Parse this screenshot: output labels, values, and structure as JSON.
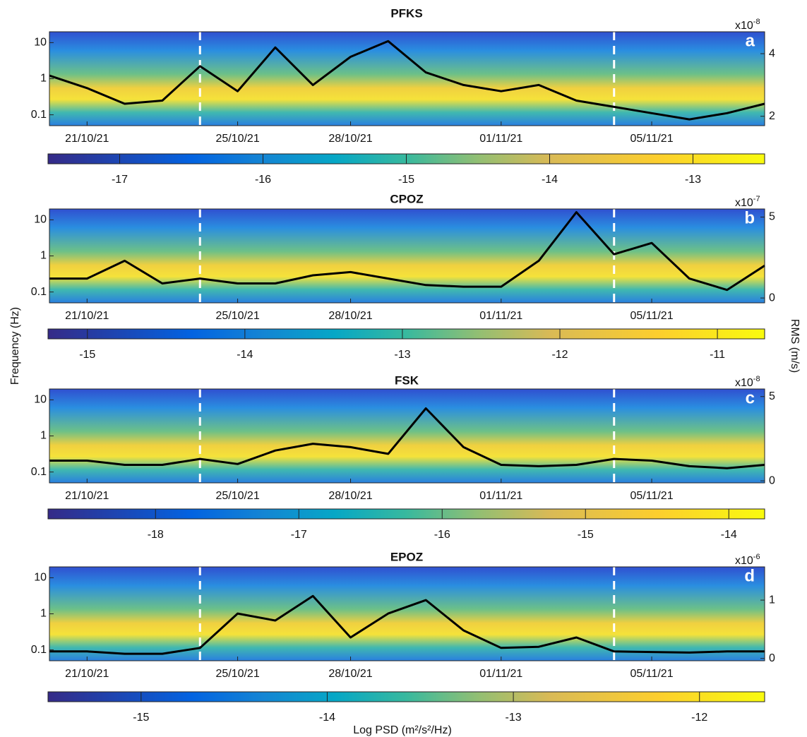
{
  "y_label": "Frequency (Hz)",
  "y2_label": "RMS (m/s)",
  "colorbar_label": "Log PSD (m²/s²/Hz)",
  "chart_data": [
    {
      "type": "line",
      "title": "PFKS",
      "letter": "a",
      "x": [
        "20/10/21",
        "21/10/21",
        "22/10/21",
        "23/10/21",
        "24/10/21",
        "25/10/21",
        "26/10/21",
        "27/10/21",
        "28/10/21",
        "29/10/21",
        "30/10/21",
        "31/10/21",
        "01/11/21",
        "02/11/21",
        "03/11/21",
        "04/11/21",
        "05/11/21",
        "06/11/21",
        "07/11/21",
        "08/11/21"
      ],
      "xlim": [
        "20/10/21",
        "08/11/21"
      ],
      "xticks": [
        "21/10/21",
        "25/10/21",
        "28/10/21",
        "01/11/21",
        "05/11/21"
      ],
      "ylim": [
        0.05,
        20
      ],
      "yticks": [
        0.1,
        1,
        10
      ],
      "log_scale": true,
      "y2lim": [
        1.7,
        4.7
      ],
      "y2ticks": [
        2,
        4
      ],
      "y2_scale": "x10",
      "y2_exponent": "-8",
      "series": [
        {
          "color": "#000000",
          "axis": "y2",
          "values": [
            3.3,
            2.9,
            2.4,
            2.5,
            3.6,
            2.8,
            4.2,
            3.0,
            3.9,
            4.4,
            3.4,
            3.0,
            2.8,
            3.0,
            2.5,
            2.3,
            2.1,
            1.9,
            2.1,
            2.4
          ]
        }
      ],
      "markers": [
        "24/10/21",
        "04/11/21"
      ],
      "colorbar": {
        "clim": [
          -17.5,
          -12.5
        ],
        "ticks": [
          -17,
          -16,
          -15,
          -14,
          -13
        ]
      }
    },
    {
      "type": "line",
      "title": "CPOZ",
      "letter": "b",
      "x": [
        "20/10/21",
        "21/10/21",
        "22/10/21",
        "23/10/21",
        "24/10/21",
        "25/10/21",
        "26/10/21",
        "27/10/21",
        "28/10/21",
        "29/10/21",
        "30/10/21",
        "31/10/21",
        "01/11/21",
        "02/11/21",
        "03/11/21",
        "04/11/21",
        "05/11/21",
        "06/11/21",
        "07/11/21",
        "08/11/21"
      ],
      "xlim": [
        "20/10/21",
        "08/11/21"
      ],
      "xticks": [
        "21/10/21",
        "25/10/21",
        "28/10/21",
        "01/11/21",
        "05/11/21"
      ],
      "ylim": [
        0.05,
        20
      ],
      "yticks": [
        0.1,
        1,
        10
      ],
      "log_scale": true,
      "y2lim": [
        -0.3,
        5.5
      ],
      "y2ticks": [
        0,
        5
      ],
      "y2_scale": "x10",
      "y2_exponent": "-7",
      "series": [
        {
          "color": "#000000",
          "axis": "y2",
          "values": [
            1.2,
            1.2,
            2.3,
            0.9,
            1.2,
            0.9,
            0.9,
            1.4,
            1.6,
            1.2,
            0.8,
            0.7,
            0.7,
            2.3,
            5.3,
            2.7,
            3.4,
            1.2,
            0.5,
            2.0
          ]
        }
      ],
      "markers": [
        "24/10/21",
        "04/11/21"
      ],
      "colorbar": {
        "clim": [
          -15.25,
          -10.7
        ],
        "ticks": [
          -15,
          -14,
          -13,
          -12,
          -11
        ]
      }
    },
    {
      "type": "line",
      "title": "FSK",
      "letter": "c",
      "x": [
        "20/10/21",
        "21/10/21",
        "22/10/21",
        "23/10/21",
        "24/10/21",
        "25/10/21",
        "26/10/21",
        "27/10/21",
        "28/10/21",
        "29/10/21",
        "30/10/21",
        "31/10/21",
        "01/11/21",
        "02/11/21",
        "03/11/21",
        "04/11/21",
        "05/11/21",
        "06/11/21",
        "07/11/21",
        "08/11/21"
      ],
      "xlim": [
        "20/10/21",
        "08/11/21"
      ],
      "xticks": [
        "21/10/21",
        "25/10/21",
        "28/10/21",
        "01/11/21",
        "05/11/21"
      ],
      "ylim": [
        0.05,
        20
      ],
      "yticks": [
        0.1,
        1,
        10
      ],
      "log_scale": true,
      "y2lim": [
        -0.12,
        5.45
      ],
      "y2ticks": [
        0,
        5
      ],
      "y2_scale": "x10",
      "y2_exponent": "-8",
      "series": [
        {
          "color": "#000000",
          "axis": "y2",
          "values": [
            1.2,
            1.2,
            0.95,
            0.95,
            1.3,
            1.0,
            1.8,
            2.2,
            2.0,
            1.6,
            4.3,
            2.0,
            0.95,
            0.87,
            0.95,
            1.3,
            1.2,
            0.87,
            0.75,
            0.95
          ]
        }
      ],
      "markers": [
        "24/10/21",
        "04/11/21"
      ],
      "colorbar": {
        "clim": [
          -18.75,
          -13.75
        ],
        "ticks": [
          -18,
          -17,
          -16,
          -15,
          -14
        ]
      }
    },
    {
      "type": "line",
      "title": "EPOZ",
      "letter": "d",
      "x": [
        "20/10/21",
        "21/10/21",
        "22/10/21",
        "23/10/21",
        "24/10/21",
        "25/10/21",
        "26/10/21",
        "27/10/21",
        "28/10/21",
        "29/10/21",
        "30/10/21",
        "31/10/21",
        "01/11/21",
        "02/11/21",
        "03/11/21",
        "04/11/21",
        "05/11/21",
        "06/11/21",
        "07/11/21",
        "08/11/21"
      ],
      "xlim": [
        "20/10/21",
        "08/11/21"
      ],
      "xticks": [
        "21/10/21",
        "25/10/21",
        "28/10/21",
        "01/11/21",
        "05/11/21"
      ],
      "ylim": [
        0.05,
        20
      ],
      "yticks": [
        0.1,
        1,
        10
      ],
      "log_scale": true,
      "y2lim": [
        -0.04,
        1.57
      ],
      "y2ticks": [
        0,
        1
      ],
      "y2_scale": "x10",
      "y2_exponent": "-6",
      "series": [
        {
          "color": "#000000",
          "axis": "y2",
          "values": [
            0.12,
            0.12,
            0.08,
            0.08,
            0.18,
            0.77,
            0.65,
            1.07,
            0.36,
            0.77,
            1.0,
            0.48,
            0.18,
            0.2,
            0.36,
            0.12,
            0.11,
            0.1,
            0.12,
            0.12
          ]
        }
      ],
      "markers": [
        "24/10/21",
        "04/11/21"
      ],
      "colorbar": {
        "clim": [
          -15.5,
          -11.65
        ],
        "ticks": [
          -15,
          -14,
          -13,
          -12
        ]
      }
    }
  ]
}
